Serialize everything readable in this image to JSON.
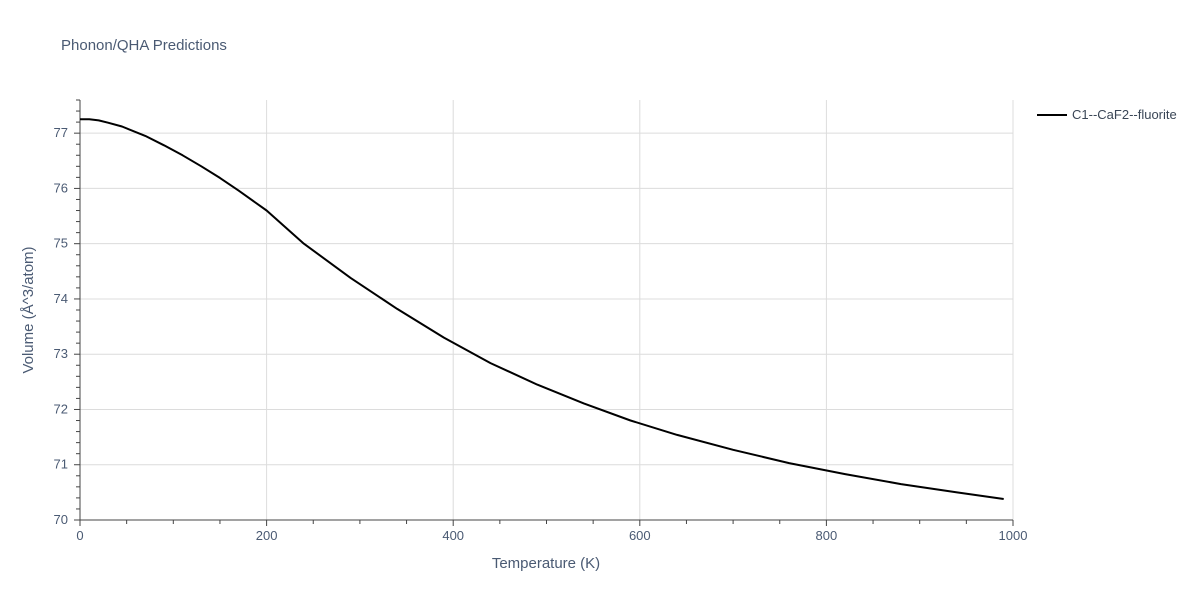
{
  "chart_data": {
    "type": "line",
    "title": "Phonon/QHA Predictions",
    "xlabel": "Temperature (K)",
    "ylabel": "Volume (Å^3/atom)",
    "xlim": [
      0,
      1000
    ],
    "ylim": [
      70,
      77.6
    ],
    "x_ticks": [
      0,
      200,
      400,
      600,
      800,
      1000
    ],
    "y_ticks": [
      70,
      71,
      72,
      73,
      74,
      75,
      76,
      77
    ],
    "x_tick_labels": [
      "0",
      "200",
      "400",
      "600",
      "800",
      "1000"
    ],
    "y_tick_labels": [
      "70",
      "71",
      "72",
      "73",
      "74",
      "75",
      "76",
      "77"
    ],
    "grid": true,
    "legend_position": "top-right outside",
    "series": [
      {
        "name": "C1--CaF2--fluorite",
        "color": "#000000",
        "x": [
          0,
          10,
          20,
          30,
          45,
          70,
          90,
          110,
          130,
          150,
          170,
          200,
          240,
          290,
          340,
          390,
          440,
          490,
          540,
          590,
          640,
          700,
          760,
          820,
          880,
          940,
          990
        ],
        "y": [
          77.25,
          77.25,
          77.23,
          77.19,
          77.12,
          76.95,
          76.78,
          76.6,
          76.4,
          76.19,
          75.96,
          75.6,
          75.0,
          74.38,
          73.82,
          73.3,
          72.84,
          72.45,
          72.11,
          71.8,
          71.54,
          71.27,
          71.03,
          70.83,
          70.65,
          70.5,
          70.38
        ]
      }
    ]
  }
}
